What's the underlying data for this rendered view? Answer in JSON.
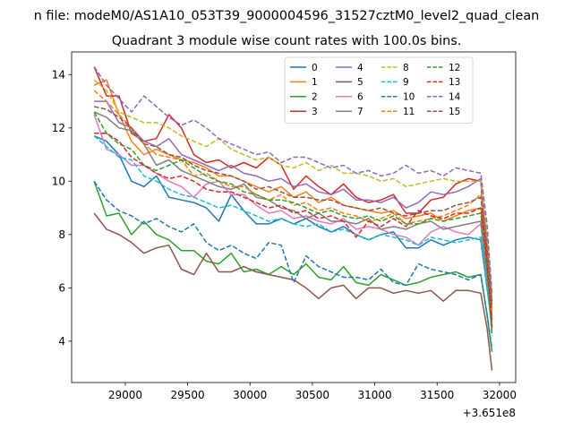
{
  "chart_data": {
    "type": "line",
    "suptitle": "n file: modeM0/AS1A10_053T39_9000004596_31527cztM0_level2_quad_clean",
    "title": "Quadrant 3 module wise count rates with 100.0s bins.",
    "xlabel": "",
    "ylabel": "",
    "x_offset_label": "+3.651e8",
    "xlim": [
      28570,
      32130
    ],
    "ylim": [
      2.45,
      14.85
    ],
    "xticks": [
      29000,
      29500,
      30000,
      30500,
      31000,
      31500,
      32000
    ],
    "xtick_labels": [
      "29000",
      "29500",
      "30000",
      "30500",
      "31000",
      "31500",
      "32000"
    ],
    "yticks": [
      4,
      6,
      8,
      10,
      12,
      14
    ],
    "ytick_labels": [
      "4",
      "6",
      "8",
      "10",
      "12",
      "14"
    ],
    "grid": false,
    "legend_position": "top-right",
    "legend_columns": 4,
    "x": [
      28750,
      28850,
      28950,
      29050,
      29150,
      29250,
      29350,
      29450,
      29550,
      29650,
      29750,
      29850,
      29950,
      30050,
      30150,
      30250,
      30350,
      30450,
      30550,
      30650,
      30750,
      30850,
      30950,
      31050,
      31150,
      31250,
      31350,
      31450,
      31550,
      31650,
      31750,
      31850,
      31900,
      31940
    ],
    "series": [
      {
        "name": "0",
        "color": "#1f77b4",
        "dash": "solid",
        "values": [
          11.7,
          11.5,
          11.0,
          10.0,
          9.8,
          10.2,
          9.4,
          9.3,
          9.2,
          9.0,
          8.5,
          9.5,
          8.9,
          8.4,
          8.4,
          8.6,
          8.4,
          8.6,
          8.3,
          8.1,
          8.3,
          8.0,
          7.8,
          8.0,
          8.1,
          7.5,
          7.5,
          7.8,
          7.6,
          7.8,
          7.9,
          7.8,
          6.0,
          4.6
        ]
      },
      {
        "name": "1",
        "color": "#ff7f0e",
        "dash": "solid",
        "values": [
          13.6,
          13.8,
          12.5,
          11.5,
          11.0,
          11.2,
          11.0,
          10.8,
          10.7,
          10.5,
          10.2,
          10.2,
          10.0,
          9.8,
          9.6,
          9.8,
          9.4,
          9.6,
          9.2,
          9.4,
          9.1,
          9.0,
          8.9,
          8.8,
          8.9,
          8.6,
          8.7,
          8.8,
          8.5,
          8.7,
          8.9,
          9.0,
          7.5,
          5.2
        ]
      },
      {
        "name": "2",
        "color": "#2ca02c",
        "dash": "solid",
        "values": [
          10.0,
          8.7,
          8.8,
          8.0,
          8.5,
          8.0,
          7.8,
          7.4,
          7.4,
          7.0,
          6.9,
          7.3,
          6.6,
          6.7,
          6.5,
          6.8,
          6.5,
          6.9,
          6.4,
          6.3,
          6.8,
          6.2,
          6.1,
          6.5,
          6.3,
          6.1,
          6.2,
          6.4,
          6.5,
          6.6,
          6.4,
          6.5,
          5.0,
          3.6
        ]
      },
      {
        "name": "3",
        "color": "#d62728",
        "dash": "solid",
        "values": [
          14.3,
          13.2,
          13.2,
          11.8,
          11.5,
          11.6,
          12.5,
          12.0,
          11.0,
          10.7,
          10.8,
          10.5,
          10.7,
          10.5,
          10.9,
          10.6,
          9.7,
          10.2,
          9.8,
          9.5,
          9.9,
          9.4,
          9.2,
          9.3,
          9.5,
          8.8,
          8.8,
          9.3,
          9.4,
          9.9,
          10.1,
          10.0,
          7.0,
          4.9
        ]
      },
      {
        "name": "4",
        "color": "#9467bd",
        "dash": "solid",
        "values": [
          13.0,
          13.0,
          12.2,
          12.0,
          11.5,
          11.3,
          11.6,
          11.0,
          10.8,
          10.6,
          10.4,
          10.6,
          10.3,
          10.2,
          10.0,
          10.1,
          9.8,
          9.9,
          9.6,
          9.5,
          9.7,
          9.3,
          9.3,
          9.2,
          9.4,
          9.0,
          9.2,
          9.6,
          9.5,
          9.6,
          9.8,
          10.1,
          7.8,
          5.5
        ]
      },
      {
        "name": "5",
        "color": "#8c564b",
        "dash": "solid",
        "values": [
          8.8,
          8.2,
          8.0,
          7.7,
          7.3,
          7.5,
          7.6,
          6.7,
          6.5,
          7.3,
          6.6,
          6.6,
          6.8,
          6.6,
          6.5,
          6.4,
          6.3,
          6.0,
          5.6,
          6.0,
          6.1,
          5.6,
          6.0,
          6.0,
          5.8,
          5.9,
          5.8,
          5.9,
          5.5,
          5.9,
          5.9,
          5.8,
          4.5,
          2.9
        ]
      },
      {
        "name": "6",
        "color": "#e377c2",
        "dash": "solid",
        "values": [
          12.5,
          11.2,
          11.0,
          10.6,
          10.6,
          10.3,
          10.0,
          9.8,
          9.4,
          9.9,
          10.0,
          9.5,
          9.5,
          9.1,
          8.8,
          8.9,
          8.6,
          8.7,
          8.5,
          8.4,
          8.6,
          8.2,
          8.3,
          8.2,
          8.0,
          7.9,
          7.6,
          8.1,
          8.3,
          8.1,
          8.0,
          8.4,
          6.2,
          4.6
        ]
      },
      {
        "name": "7",
        "color": "#7f7f7f",
        "dash": "solid",
        "values": [
          12.6,
          12.4,
          12.0,
          11.9,
          11.4,
          10.6,
          10.8,
          10.4,
          10.2,
          10.0,
          9.8,
          9.7,
          9.9,
          9.4,
          9.3,
          9.0,
          8.9,
          8.6,
          8.8,
          8.5,
          8.5,
          8.4,
          8.6,
          8.2,
          8.3,
          8.2,
          8.4,
          8.5,
          8.2,
          8.3,
          8.4,
          8.5,
          6.5,
          4.8
        ]
      },
      {
        "name": "8",
        "color": "#bcbd22",
        "dash": "dashed",
        "values": [
          13.8,
          13.4,
          12.6,
          12.4,
          12.2,
          12.2,
          12.0,
          11.7,
          11.5,
          11.3,
          11.6,
          11.2,
          11.0,
          10.8,
          10.9,
          10.6,
          10.5,
          10.7,
          10.4,
          10.6,
          10.3,
          10.3,
          10.2,
          10.0,
          10.1,
          9.8,
          9.9,
          10.0,
          10.1,
          10.0,
          10.0,
          10.0,
          8.0,
          5.6
        ]
      },
      {
        "name": "9",
        "color": "#17becf",
        "dash": "dashed",
        "values": [
          11.7,
          11.3,
          10.9,
          10.8,
          10.2,
          10.0,
          9.7,
          9.5,
          9.4,
          9.2,
          9.0,
          9.1,
          8.9,
          8.7,
          8.5,
          8.6,
          8.4,
          8.3,
          8.4,
          8.1,
          8.2,
          8.0,
          7.8,
          8.0,
          7.9,
          7.8,
          7.6,
          7.9,
          7.8,
          7.7,
          7.8,
          7.9,
          6.1,
          4.4
        ]
      },
      {
        "name": "10",
        "color": "#1f77b4",
        "dash": "dashed",
        "values": [
          10.0,
          9.3,
          8.9,
          8.7,
          8.4,
          8.6,
          8.3,
          8.1,
          8.4,
          7.7,
          7.4,
          7.6,
          7.3,
          7.1,
          7.7,
          7.6,
          6.2,
          7.2,
          6.8,
          6.6,
          6.4,
          6.4,
          6.3,
          6.7,
          6.2,
          6.1,
          6.9,
          6.7,
          6.6,
          6.5,
          6.3,
          6.5,
          5.0,
          3.7
        ]
      },
      {
        "name": "11",
        "color": "#ff7f0e",
        "dash": "dashed",
        "values": [
          13.4,
          13.0,
          12.5,
          12.0,
          11.4,
          11.0,
          10.9,
          10.8,
          10.2,
          10.3,
          10.0,
          9.8,
          9.8,
          9.5,
          9.3,
          9.5,
          9.1,
          9.2,
          8.9,
          9.0,
          8.8,
          8.7,
          8.5,
          8.6,
          8.8,
          8.4,
          8.5,
          8.6,
          8.7,
          8.9,
          9.1,
          9.5,
          7.4,
          5.0
        ]
      },
      {
        "name": "12",
        "color": "#2ca02c",
        "dash": "dashed",
        "values": [
          12.6,
          11.8,
          11.4,
          11.2,
          10.6,
          10.4,
          10.6,
          10.8,
          10.5,
          10.2,
          10.0,
          9.9,
          9.6,
          9.5,
          9.3,
          9.3,
          9.2,
          9.0,
          8.8,
          8.9,
          8.7,
          8.6,
          8.7,
          8.5,
          8.7,
          8.4,
          8.4,
          8.6,
          8.5,
          8.6,
          8.7,
          8.8,
          6.8,
          4.2
        ]
      },
      {
        "name": "13",
        "color": "#d62728",
        "dash": "dashed",
        "values": [
          11.8,
          11.8,
          11.5,
          10.9,
          10.6,
          10.3,
          10.1,
          10.2,
          10.0,
          9.7,
          9.6,
          9.6,
          9.4,
          9.2,
          9.0,
          9.1,
          8.8,
          8.9,
          8.6,
          8.7,
          8.5,
          7.9,
          8.5,
          8.3,
          8.6,
          8.3,
          8.9,
          8.7,
          8.6,
          8.8,
          8.8,
          9.0,
          7.0,
          4.5
        ]
      },
      {
        "name": "14",
        "color": "#9467bd",
        "dash": "dashed",
        "values": [
          14.3,
          13.6,
          13.1,
          12.6,
          13.2,
          12.8,
          12.4,
          12.1,
          12.3,
          12.0,
          11.6,
          11.4,
          11.2,
          11.0,
          11.1,
          10.7,
          10.9,
          10.9,
          10.7,
          10.5,
          10.6,
          10.3,
          10.4,
          10.2,
          10.3,
          10.6,
          10.3,
          10.4,
          10.2,
          10.5,
          10.4,
          10.3,
          8.4,
          5.8
        ]
      },
      {
        "name": "15",
        "color": "#8c564b",
        "dash": "dashed",
        "values": [
          12.8,
          12.7,
          12.4,
          12.0,
          11.4,
          11.3,
          11.0,
          10.9,
          10.6,
          10.4,
          10.3,
          10.2,
          10.0,
          9.7,
          9.8,
          9.6,
          9.4,
          9.4,
          9.3,
          9.3,
          9.1,
          9.0,
          8.9,
          9.0,
          8.8,
          8.7,
          8.8,
          8.9,
          8.9,
          9.1,
          9.2,
          9.4,
          7.5,
          5.3
        ]
      }
    ]
  }
}
